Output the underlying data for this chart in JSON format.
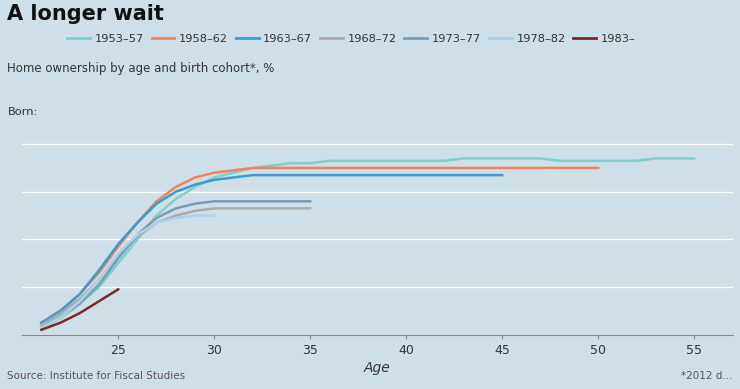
{
  "title": "A longer wait",
  "subtitle": "Home ownership by age and birth cohort*, %",
  "xlabel": "Age",
  "source": "Source: Institute for Fiscal Studies",
  "note": "*2012 d...",
  "background_color": "#cfdfe8",
  "series": [
    {
      "label": "1953–57",
      "color": "#7ececa",
      "age_start": 21,
      "values": [
        4,
        8,
        13,
        20,
        30,
        40,
        50,
        57,
        62,
        66,
        68,
        70,
        71,
        72,
        72,
        73,
        73,
        73,
        73,
        73,
        73,
        73,
        74,
        74,
        74,
        74,
        74,
        73,
        73,
        73,
        73,
        73,
        74,
        74,
        74
      ]
    },
    {
      "label": "1958–62",
      "color": "#f0835e",
      "age_start": 21,
      "values": [
        5,
        10,
        17,
        26,
        37,
        47,
        56,
        62,
        66,
        68,
        69,
        70,
        70,
        70,
        70,
        70,
        70,
        70,
        70,
        70,
        70,
        70,
        70,
        70,
        70,
        70,
        70,
        70,
        70,
        70
      ]
    },
    {
      "label": "1963–67",
      "color": "#3b9dc8",
      "age_start": 21,
      "values": [
        5,
        10,
        17,
        27,
        38,
        47,
        55,
        60,
        63,
        65,
        66,
        67,
        67,
        67,
        67,
        67,
        67,
        67,
        67,
        67,
        67,
        67,
        67,
        67,
        67
      ]
    },
    {
      "label": "1968–72",
      "color": "#aaaaaa",
      "age_start": 21,
      "values": [
        4,
        9,
        15,
        23,
        33,
        41,
        47,
        50,
        52,
        53,
        53,
        53,
        53,
        53,
        53
      ]
    },
    {
      "label": "1973–77",
      "color": "#7a9db5",
      "age_start": 21,
      "values": [
        3,
        7,
        13,
        21,
        32,
        42,
        49,
        53,
        55,
        56,
        56,
        56,
        56,
        56,
        56
      ]
    },
    {
      "label": "1978–82",
      "color": "#a8d4e8",
      "age_start": 21,
      "values": [
        3,
        7,
        14,
        23,
        34,
        42,
        47,
        49,
        50,
        50
      ]
    },
    {
      "label": "1983–",
      "color": "#7b2a2a",
      "age_start": 21,
      "values": [
        2,
        5,
        9,
        14,
        19
      ]
    }
  ],
  "xlim": [
    20,
    57
  ],
  "ylim": [
    0,
    85
  ],
  "xticks": [
    25,
    30,
    35,
    40,
    45,
    50,
    55
  ],
  "born_label": "Born:",
  "title_fontsize": 15,
  "subtitle_fontsize": 8.5,
  "legend_fontsize": 8.2,
  "axis_label_fontsize": 9,
  "source_fontsize": 7.5
}
